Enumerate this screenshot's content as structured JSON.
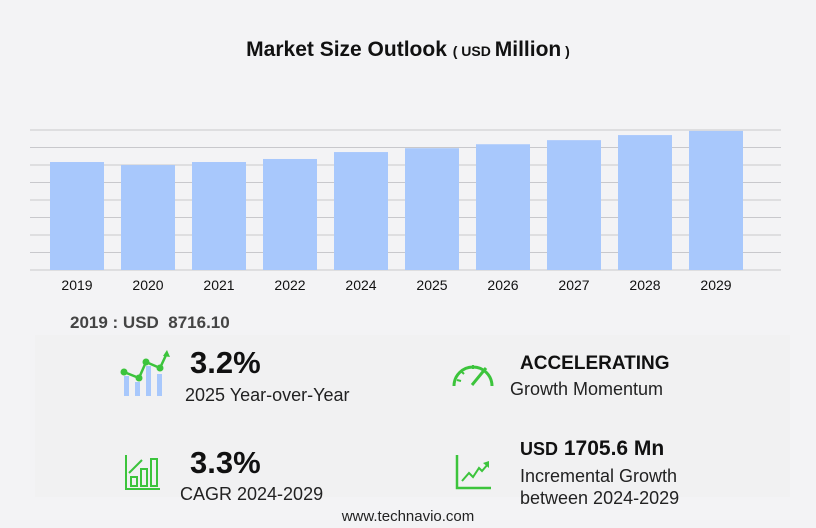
{
  "header": {
    "title": "Market Size Outlook",
    "unit_prefix": "USD",
    "unit_main": "Million"
  },
  "chart_data": {
    "type": "bar",
    "title": "Market Size Outlook (USD Million)",
    "categories": [
      "2019",
      "2020",
      "2021",
      "2022",
      "2024",
      "2025",
      "2026",
      "2027",
      "2028",
      "2029"
    ],
    "values": [
      8716.1,
      8470,
      8716,
      8960,
      9520,
      9830,
      10150,
      10480,
      10890,
      11226
    ],
    "ylim": [
      0,
      11300
    ],
    "grid": true,
    "bar_color": "#a8c8fc"
  },
  "highlight": "2019 : USD  8716.10",
  "stats": {
    "yoy": {
      "value": "3.2%",
      "label": "2025 Year-over-Year"
    },
    "momentum": {
      "value": "ACCELERATING",
      "label": "Growth Momentum"
    },
    "cagr": {
      "value": "3.3%",
      "label": "CAGR 2024-2029"
    },
    "incremental": {
      "prefix": "USD",
      "value": "1705.6 Mn",
      "label1": "Incremental Growth",
      "label2": "between 2024-2029"
    }
  },
  "colors": {
    "accent_green": "#3cc43c",
    "bar": "#a8c8fc"
  },
  "footer": "www.technavio.com"
}
